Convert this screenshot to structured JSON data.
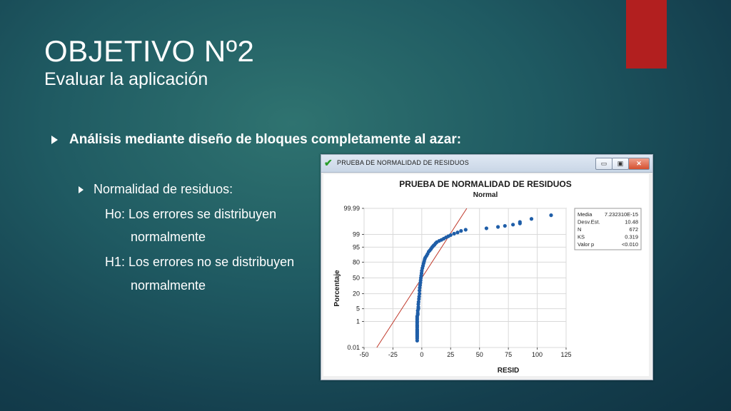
{
  "slide": {
    "title": "OBJETIVO Nº2",
    "subtitle": "Evaluar la aplicación",
    "bullet_main": "Análisis mediante diseño de bloques completamente al azar:",
    "bullet_sub": "Normalidad de residuos:",
    "lines": [
      "Ho: Los errores se distribuyen",
      "normalmente",
      "H1: Los errores no se distribuyen",
      "normalmente"
    ],
    "colors": {
      "accent": "#b21f1f",
      "background": "#1f5a62"
    }
  },
  "window": {
    "title": "PRUEBA DE NORMALIDAD DE RESIDUOS",
    "title_icon": "check-icon",
    "buttons": {
      "minimize": "▭",
      "maximize": "▣",
      "close": "✕"
    }
  },
  "chart_data": {
    "type": "scatter",
    "title": "PRUEBA DE NORMALIDAD DE RESIDUOS",
    "subtitle": "Normal",
    "xlabel": "RESID",
    "ylabel": "Porcentaje",
    "xlim": [
      -50,
      125
    ],
    "x_ticks": [
      -50,
      -25,
      0,
      25,
      50,
      75,
      100,
      125
    ],
    "y_ticks": [
      0.01,
      1,
      5,
      20,
      50,
      80,
      95,
      99,
      99.99
    ],
    "y_scale": "normal-probability",
    "grid": true,
    "point_color": "#1f5ea8",
    "fit_line_color": "#c0392b",
    "fit_line": {
      "mean": 0,
      "sd": 10.48
    },
    "points": [
      [
        -4,
        0.04
      ],
      [
        -4,
        0.06
      ],
      [
        -4,
        0.08
      ],
      [
        -4,
        0.1
      ],
      [
        -4,
        0.13
      ],
      [
        -4,
        0.16
      ],
      [
        -4,
        0.2
      ],
      [
        -4,
        0.25
      ],
      [
        -4,
        0.3
      ],
      [
        -4,
        0.4
      ],
      [
        -4,
        0.5
      ],
      [
        -4,
        0.6
      ],
      [
        -4,
        0.8
      ],
      [
        -4,
        1
      ],
      [
        -4,
        1.3
      ],
      [
        -4,
        1.6
      ],
      [
        -4,
        2
      ],
      [
        -3.5,
        2.5
      ],
      [
        -3.5,
        3
      ],
      [
        -3.5,
        4
      ],
      [
        -3,
        5
      ],
      [
        -3,
        6
      ],
      [
        -3,
        8
      ],
      [
        -2.8,
        10
      ],
      [
        -2.5,
        13
      ],
      [
        -2.3,
        16
      ],
      [
        -2,
        20
      ],
      [
        -2,
        25
      ],
      [
        -1.8,
        30
      ],
      [
        -1.5,
        35
      ],
      [
        -1.2,
        40
      ],
      [
        -1,
        45
      ],
      [
        -0.8,
        50
      ],
      [
        -0.5,
        55
      ],
      [
        -0.2,
        60
      ],
      [
        0,
        65
      ],
      [
        0.5,
        70
      ],
      [
        1,
        74
      ],
      [
        1.5,
        78
      ],
      [
        2,
        81
      ],
      [
        2.5,
        84
      ],
      [
        3,
        86
      ],
      [
        4,
        88
      ],
      [
        5,
        90
      ],
      [
        6,
        92
      ],
      [
        7,
        93
      ],
      [
        8,
        94
      ],
      [
        9,
        95
      ],
      [
        10,
        95.7
      ],
      [
        11,
        96.2
      ],
      [
        12,
        96.8
      ],
      [
        13,
        97.2
      ],
      [
        15,
        97.6
      ],
      [
        17,
        97.9
      ],
      [
        19,
        98.2
      ],
      [
        21,
        98.5
      ],
      [
        23,
        98.7
      ],
      [
        25,
        98.9
      ],
      [
        28,
        99.1
      ],
      [
        31,
        99.25
      ],
      [
        34,
        99.4
      ],
      [
        38,
        99.5
      ],
      [
        56,
        99.6
      ],
      [
        66,
        99.68
      ],
      [
        72,
        99.73
      ],
      [
        79,
        99.78
      ],
      [
        85,
        99.82
      ],
      [
        85,
        99.86
      ],
      [
        95,
        99.92
      ],
      [
        112,
        99.96
      ]
    ],
    "stats": [
      {
        "label": "Media",
        "value": "7.232310E-15"
      },
      {
        "label": "Desv.Est.",
        "value": "10.48"
      },
      {
        "label": "N",
        "value": "672"
      },
      {
        "label": "KS",
        "value": "0.319"
      },
      {
        "label": "Valor p",
        "value": "<0.010"
      }
    ]
  }
}
